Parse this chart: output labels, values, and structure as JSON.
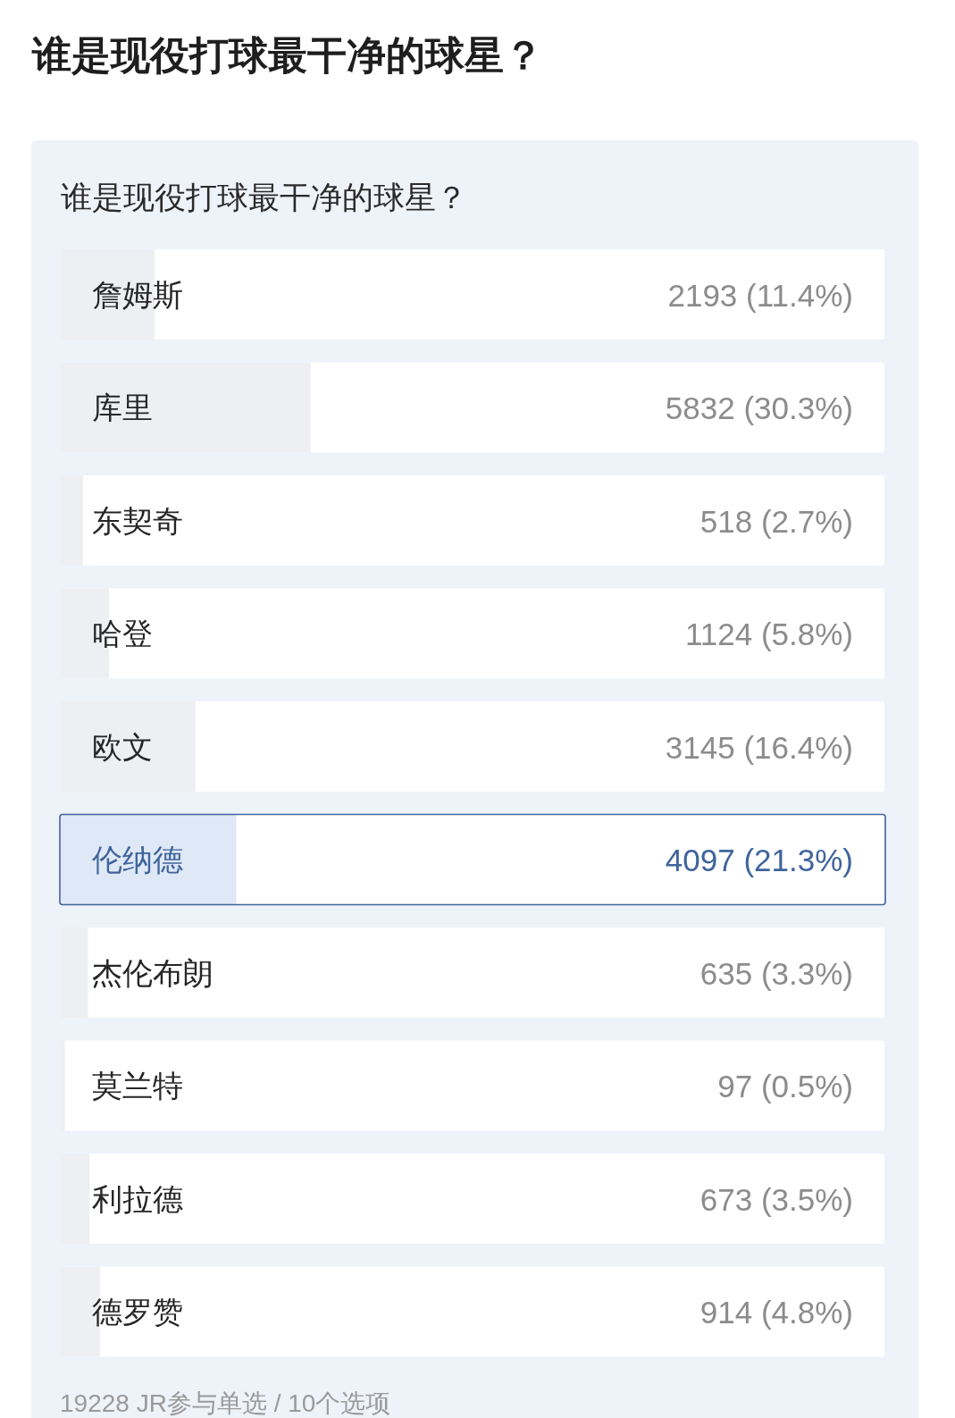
{
  "chart_data": {
    "type": "bar",
    "orientation": "horizontal",
    "title": "谁是现役打球最干净的球星？",
    "subtitle": "谁是现役打球最干净的球星？",
    "categories": [
      "詹姆斯",
      "库里",
      "东契奇",
      "哈登",
      "欧文",
      "伦纳德",
      "杰伦布朗",
      "莫兰特",
      "利拉德",
      "德罗赞"
    ],
    "values": [
      2193,
      5832,
      518,
      1124,
      3145,
      4097,
      635,
      97,
      673,
      914
    ],
    "value_labels": [
      "2193 (11.4%)",
      "5832 (30.3%)",
      "518 (2.7%)",
      "1124 (5.8%)",
      "3145 (16.4%)",
      "4097 (21.3%)",
      "635 (3.3%)",
      "97 (0.5%)",
      "673 (3.5%)",
      "914 (4.8%)"
    ],
    "colors": [
      "#eeeff2",
      "#eeeff2",
      "#eeeff2",
      "#eeeff2",
      "#eeeff2",
      "#dfe8f6",
      "#eeeff2",
      "#eeeff2",
      "#eeeff2",
      "#eeeff2"
    ],
    "xlim": [
      0,
      19228
    ],
    "annotations": [
      "19228 JR参与单选 / 10个选项"
    ]
  }
}
